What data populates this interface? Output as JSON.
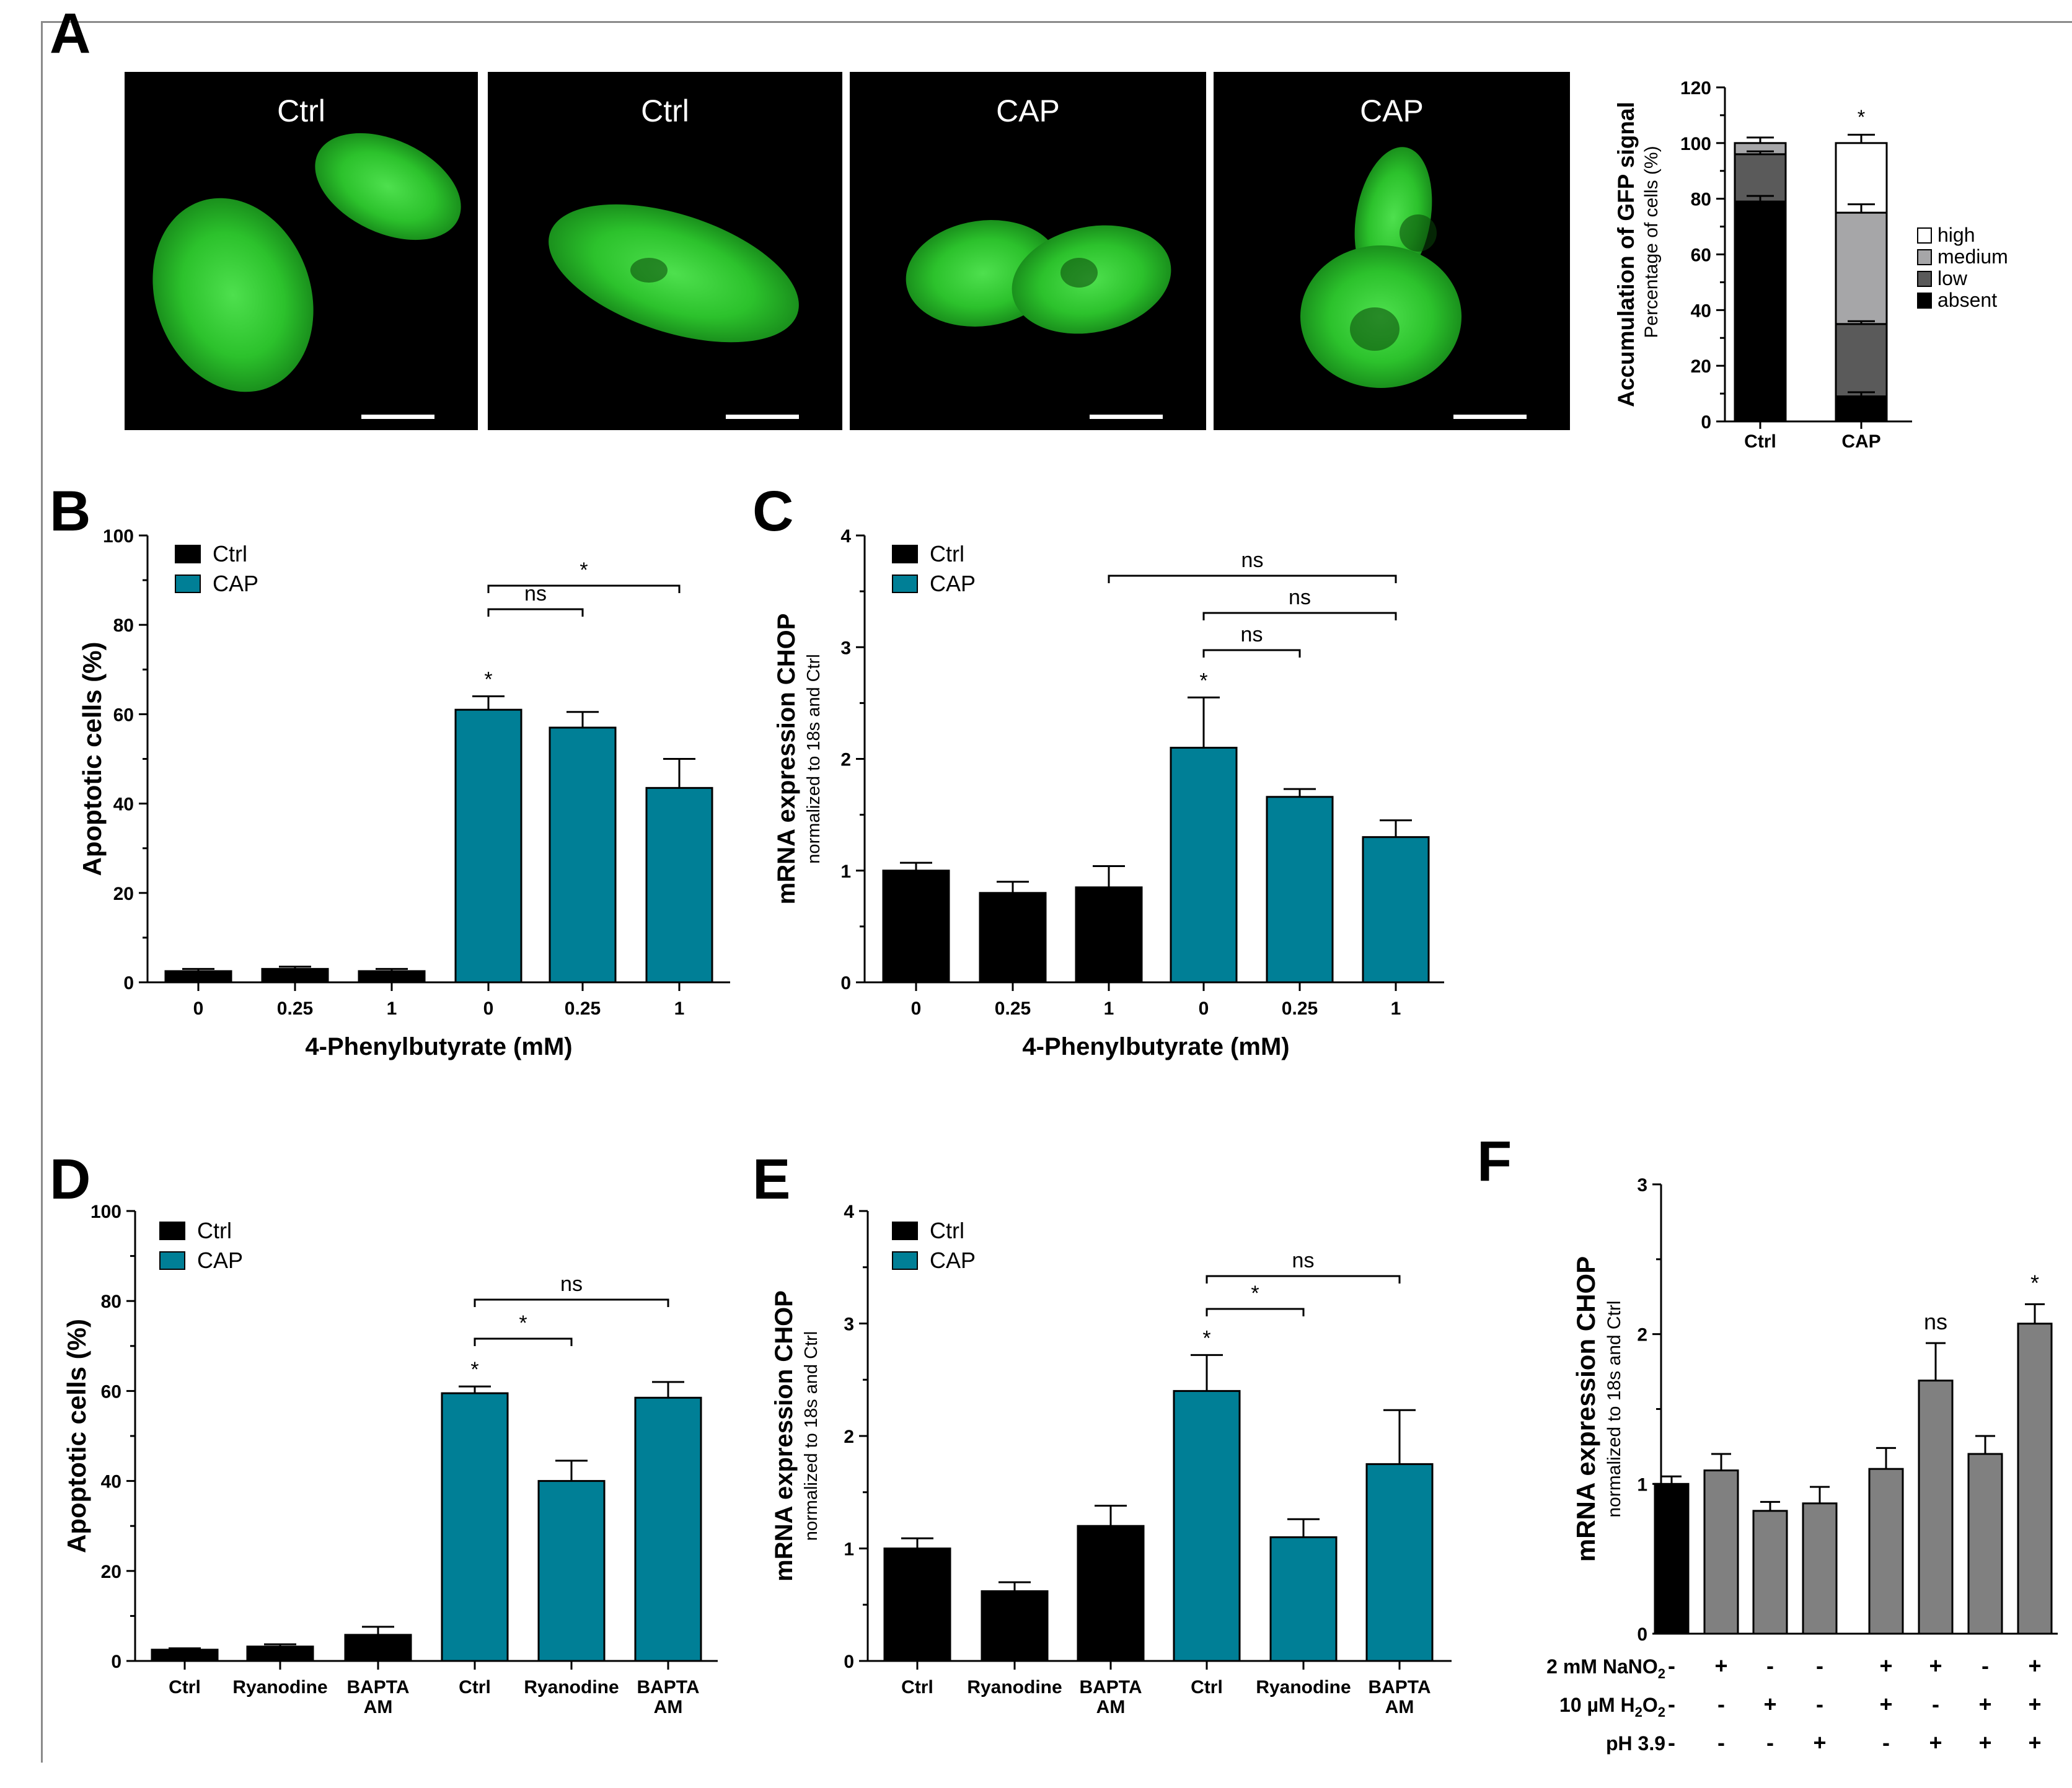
{
  "panel_letters": {
    "A": "A",
    "B": "B",
    "C": "C",
    "D": "D",
    "E": "E",
    "F": "F"
  },
  "micrographs": [
    {
      "label": "Ctrl"
    },
    {
      "label": "Ctrl"
    },
    {
      "label": "CAP"
    },
    {
      "label": "CAP"
    }
  ],
  "colors": {
    "ctrl": "#000000",
    "cap": "#007f96",
    "gray_bar": "#808080",
    "gfp": "#2ecc2e"
  },
  "chart_data": [
    {
      "id": "A",
      "type": "bar",
      "stacked": true,
      "categories": [
        "Ctrl",
        "CAP"
      ],
      "ylabel": "Accumulation of GFP signal",
      "ylabel2": "Percentage of cells (%)",
      "ylim": [
        0,
        120
      ],
      "yticks": [
        0,
        20,
        40,
        60,
        80,
        100,
        120
      ],
      "series": [
        {
          "name": "absent",
          "color": "#000000",
          "values": [
            79,
            9
          ],
          "err": [
            2,
            1.5
          ]
        },
        {
          "name": "low",
          "color": "#5a5a5a",
          "values": [
            17,
            26
          ],
          "err": [
            1,
            1
          ]
        },
        {
          "name": "medium",
          "color": "#a6a6a8",
          "values": [
            4,
            40
          ],
          "err": [
            2,
            3
          ]
        },
        {
          "name": "high",
          "color": "#ffffff",
          "values": [
            0,
            25
          ],
          "err": [
            0,
            3
          ]
        }
      ],
      "legend_order": [
        "high",
        "medium",
        "low",
        "absent"
      ],
      "annotations": [
        {
          "category": "CAP",
          "text": "*"
        }
      ]
    },
    {
      "id": "B",
      "type": "bar",
      "categories": [
        "0",
        "0.25",
        "1",
        "0",
        "0.25",
        "1"
      ],
      "groups": [
        "Ctrl",
        "Ctrl",
        "Ctrl",
        "CAP",
        "CAP",
        "CAP"
      ],
      "values": [
        2.5,
        3,
        2.5,
        61,
        57,
        43.5
      ],
      "err": [
        0.5,
        0.5,
        0.5,
        3,
        3.5,
        6.5
      ],
      "xlabel": "4-Phenylbutyrate (mM)",
      "ylabel": "Apoptotic cells (%)",
      "ylim": [
        0,
        100
      ],
      "yticks": [
        0,
        20,
        40,
        60,
        80,
        100
      ],
      "legend": [
        {
          "name": "Ctrl",
          "color": "#000000"
        },
        {
          "name": "CAP",
          "color": "#007f96"
        }
      ],
      "stars": [
        {
          "index": 3,
          "text": "*"
        }
      ],
      "brackets": [
        {
          "from": 3,
          "to": 4,
          "text": "ns",
          "level": 0
        },
        {
          "from": 3,
          "to": 5,
          "text": "*",
          "level": 1
        }
      ]
    },
    {
      "id": "C",
      "type": "bar",
      "categories": [
        "0",
        "0.25",
        "1",
        "0",
        "0.25",
        "1"
      ],
      "groups": [
        "Ctrl",
        "Ctrl",
        "Ctrl",
        "CAP",
        "CAP",
        "CAP"
      ],
      "values": [
        1.0,
        0.8,
        0.85,
        2.1,
        1.66,
        1.3
      ],
      "err": [
        0.07,
        0.1,
        0.19,
        0.45,
        0.07,
        0.15
      ],
      "xlabel": "4-Phenylbutyrate (mM)",
      "ylabel": "mRNA expression CHOP",
      "ylabel2": "normalized to 18s and Ctrl",
      "ylim": [
        0,
        4
      ],
      "yticks": [
        0,
        1,
        2,
        3,
        4
      ],
      "legend": [
        {
          "name": "Ctrl",
          "color": "#000000"
        },
        {
          "name": "CAP",
          "color": "#007f96"
        }
      ],
      "stars": [
        {
          "index": 3,
          "text": "*"
        }
      ],
      "brackets": [
        {
          "from": 3,
          "to": 4,
          "text": "ns",
          "level": 0
        },
        {
          "from": 3,
          "to": 5,
          "text": "ns",
          "level": 1
        },
        {
          "from": 2,
          "to": 5,
          "text": "ns",
          "level": 2
        }
      ]
    },
    {
      "id": "D",
      "type": "bar",
      "categories": [
        "Ctrl",
        "Ryanodine",
        "BAPTA AM",
        "Ctrl",
        "Ryanodine",
        "BAPTA AM"
      ],
      "groups": [
        "Ctrl",
        "Ctrl",
        "Ctrl",
        "CAP",
        "CAP",
        "CAP"
      ],
      "values": [
        2.5,
        3.2,
        5.8,
        59.5,
        40,
        58.5
      ],
      "err": [
        0.3,
        0.5,
        1.8,
        1.5,
        4.5,
        3.5
      ],
      "ylabel": "Apoptotic cells (%)",
      "ylim": [
        0,
        100
      ],
      "yticks": [
        0,
        20,
        40,
        60,
        80,
        100
      ],
      "legend": [
        {
          "name": "Ctrl",
          "color": "#000000"
        },
        {
          "name": "CAP",
          "color": "#007f96"
        }
      ],
      "stars": [
        {
          "index": 3,
          "text": "*"
        }
      ],
      "brackets": [
        {
          "from": 3,
          "to": 4,
          "text": "*",
          "level": 0
        },
        {
          "from": 3,
          "to": 5,
          "text": "ns",
          "level": 1
        }
      ]
    },
    {
      "id": "E",
      "type": "bar",
      "categories": [
        "Ctrl",
        "Ryanodine",
        "BAPTA AM",
        "Ctrl",
        "Ryanodine",
        "BAPTA AM"
      ],
      "groups": [
        "Ctrl",
        "Ctrl",
        "Ctrl",
        "CAP",
        "CAP",
        "CAP"
      ],
      "values": [
        1.0,
        0.62,
        1.2,
        2.4,
        1.1,
        1.75
      ],
      "err": [
        0.09,
        0.08,
        0.18,
        0.32,
        0.16,
        0.48
      ],
      "ylabel": "mRNA expression CHOP",
      "ylabel2": "normalized to 18s and Ctrl",
      "ylim": [
        0,
        4
      ],
      "yticks": [
        0,
        1,
        2,
        3,
        4
      ],
      "legend": [
        {
          "name": "Ctrl",
          "color": "#000000"
        },
        {
          "name": "CAP",
          "color": "#007f96"
        }
      ],
      "stars": [
        {
          "index": 3,
          "text": "*"
        }
      ],
      "brackets": [
        {
          "from": 3,
          "to": 4,
          "text": "*",
          "level": 0
        },
        {
          "from": 3,
          "to": 5,
          "text": "ns",
          "level": 1
        }
      ]
    },
    {
      "id": "F",
      "type": "bar",
      "values": [
        1.0,
        1.09,
        0.82,
        0.87,
        1.1,
        1.69,
        1.2,
        2.07
      ],
      "err": [
        0.05,
        0.11,
        0.06,
        0.11,
        0.14,
        0.25,
        0.12,
        0.13
      ],
      "colors": [
        "#000000",
        "#808080",
        "#808080",
        "#808080",
        "#808080",
        "#808080",
        "#808080",
        "#808080"
      ],
      "ylabel": "mRNA expression CHOP",
      "ylabel2": "normalized to 18s and Ctrl",
      "ylim": [
        0,
        3
      ],
      "yticks": [
        0,
        1,
        2,
        3
      ],
      "annotations": [
        {
          "index": 5,
          "text": "ns"
        },
        {
          "index": 7,
          "text": "*"
        }
      ],
      "conditions": [
        {
          "label": "2 mM NaNO",
          "sub": "2",
          "signs": [
            "-",
            "+",
            "-",
            "-",
            "+",
            "+",
            "-",
            "+"
          ]
        },
        {
          "label": "10 µM H",
          "sub": "2",
          "mid": "O",
          "sub2": "2",
          "signs": [
            "-",
            "-",
            "+",
            "-",
            "+",
            "-",
            "+",
            "+"
          ]
        },
        {
          "label": "pH 3.9",
          "signs": [
            "-",
            "-",
            "-",
            "+",
            "-",
            "+",
            "+",
            "+"
          ]
        }
      ]
    }
  ]
}
